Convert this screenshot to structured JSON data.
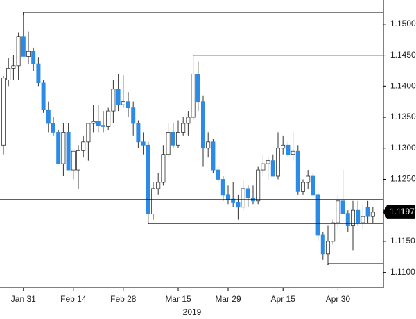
{
  "chart_data": {
    "type": "candlestick",
    "categories": [
      null,
      null,
      null,
      null,
      "Jan 31",
      null,
      null,
      null,
      null,
      null,
      null,
      null,
      null,
      null,
      "Feb 14",
      null,
      null,
      null,
      null,
      null,
      null,
      null,
      null,
      null,
      "Feb 28",
      null,
      null,
      null,
      null,
      null,
      null,
      null,
      null,
      null,
      null,
      "Mar 15",
      null,
      null,
      null,
      null,
      null,
      null,
      null,
      null,
      null,
      "Mar 29",
      null,
      null,
      null,
      null,
      null,
      null,
      null,
      null,
      null,
      null,
      "Apr 15",
      null,
      null,
      null,
      null,
      null,
      null,
      null,
      null,
      null,
      null,
      "Apr 30",
      null,
      null,
      null,
      null,
      null,
      null,
      null
    ],
    "open": [
      1.1305,
      1.141,
      1.1429,
      1.1433,
      1.148,
      1.1448,
      1.1456,
      1.1436,
      1.1406,
      1.1362,
      1.134,
      1.1325,
      1.1275,
      1.1325,
      1.1265,
      1.1265,
      1.1296,
      1.131,
      1.134,
      1.1343,
      1.1337,
      1.1335,
      1.136,
      1.1395,
      1.137,
      1.1375,
      1.1365,
      1.134,
      1.131,
      1.1305,
      1.1194,
      1.1235,
      1.1245,
      1.129,
      1.1325,
      1.1305,
      1.1325,
      1.134,
      1.135,
      1.142,
      1.1375,
      1.13,
      1.131,
      1.1265,
      1.125,
      1.1225,
      1.1218,
      1.1212,
      1.1205,
      1.1235,
      1.122,
      1.1215,
      1.1265,
      1.1275,
      1.128,
      1.1255,
      1.13,
      1.1305,
      1.129,
      1.1295,
      1.123,
      1.1245,
      1.1255,
      1.1225,
      1.116,
      1.113,
      1.115,
      1.118,
      1.1215,
      1.1195,
      1.1175,
      1.12,
      1.118,
      1.1205,
      1.119
    ],
    "high": [
      1.1417,
      1.1445,
      1.145,
      1.1487,
      1.1514,
      1.1488,
      1.1462,
      1.1447,
      1.141,
      1.1375,
      1.135,
      1.133,
      1.134,
      1.134,
      1.1295,
      1.1305,
      1.132,
      1.134,
      1.137,
      1.137,
      1.136,
      1.1365,
      1.141,
      1.142,
      1.1418,
      1.139,
      1.1375,
      1.1345,
      1.1325,
      1.131,
      1.1245,
      1.126,
      1.1305,
      1.134,
      1.134,
      1.1345,
      1.135,
      1.136,
      1.145,
      1.144,
      1.1385,
      1.1325,
      1.1315,
      1.127,
      1.1255,
      1.124,
      1.1245,
      1.1225,
      1.125,
      1.124,
      1.124,
      1.127,
      1.129,
      1.1285,
      1.129,
      1.1325,
      1.132,
      1.131,
      1.1325,
      1.1305,
      1.125,
      1.1265,
      1.126,
      1.123,
      1.1165,
      1.1175,
      1.1185,
      1.1225,
      1.1265,
      1.12,
      1.1215,
      1.1215,
      1.121,
      1.1215,
      1.1205
    ],
    "low": [
      1.129,
      1.14,
      1.141,
      1.141,
      1.145,
      1.1435,
      1.1425,
      1.14,
      1.1357,
      1.1325,
      1.132,
      1.1275,
      1.1255,
      1.1265,
      1.125,
      1.1235,
      1.1285,
      1.128,
      1.1325,
      1.1325,
      1.1325,
      1.133,
      1.134,
      1.136,
      1.1365,
      1.135,
      1.132,
      1.13,
      1.129,
      1.1178,
      1.1185,
      1.1225,
      1.124,
      1.1285,
      1.13,
      1.13,
      1.132,
      1.132,
      1.1345,
      1.136,
      1.127,
      1.1285,
      1.126,
      1.1245,
      1.1215,
      1.121,
      1.1205,
      1.1185,
      1.12,
      1.1205,
      1.121,
      1.121,
      1.1255,
      1.125,
      1.1255,
      1.125,
      1.129,
      1.1285,
      1.128,
      1.1225,
      1.1225,
      1.1235,
      1.1225,
      1.115,
      1.112,
      1.1112,
      1.1145,
      1.117,
      1.1195,
      1.1165,
      1.1135,
      1.1175,
      1.117,
      1.118,
      1.118
    ],
    "close": [
      1.1413,
      1.1429,
      1.1433,
      1.148,
      1.1448,
      1.1456,
      1.1436,
      1.1406,
      1.1362,
      1.134,
      1.1325,
      1.1275,
      1.1325,
      1.1265,
      1.1295,
      1.1296,
      1.131,
      1.134,
      1.1343,
      1.1337,
      1.1335,
      1.136,
      1.1395,
      1.137,
      1.1375,
      1.1365,
      1.134,
      1.131,
      1.1305,
      1.1194,
      1.1235,
      1.1245,
      1.129,
      1.1325,
      1.1305,
      1.1325,
      1.134,
      1.135,
      1.142,
      1.1375,
      1.13,
      1.131,
      1.1265,
      1.125,
      1.1225,
      1.1218,
      1.1212,
      1.1205,
      1.1235,
      1.122,
      1.1215,
      1.1265,
      1.1275,
      1.128,
      1.1255,
      1.13,
      1.1305,
      1.129,
      1.1295,
      1.123,
      1.1245,
      1.1255,
      1.1225,
      1.116,
      1.113,
      1.115,
      1.118,
      1.1215,
      1.1195,
      1.1175,
      1.12,
      1.118,
      1.119,
      1.119,
      1.1197
    ],
    "up_color": "#ffffff",
    "down_color": "#2b8be6",
    "levels": [
      {
        "value": 1.1519,
        "from": 4
      },
      {
        "value": 1.145,
        "from": 38
      },
      {
        "value": 1.1217,
        "from": 0
      },
      {
        "value": 1.1179,
        "from": 29
      },
      {
        "value": 1.1114,
        "from": 65
      }
    ],
    "last_price": 1.1197,
    "x_label": "2019",
    "ylim": [
      1.1075,
      1.1539
    ],
    "yticks": [
      {
        "value": 1.11,
        "label": "1.1100"
      },
      {
        "value": 1.115,
        "label": "1.1150"
      },
      {
        "value": 1.12,
        "label": "1.1200"
      },
      {
        "value": 1.125,
        "label": "1.1250"
      },
      {
        "value": 1.13,
        "label": "1.1300"
      },
      {
        "value": 1.135,
        "label": "1.1350"
      },
      {
        "value": 1.14,
        "label": "1.1400"
      },
      {
        "value": 1.145,
        "label": "1.1450"
      },
      {
        "value": 1.15,
        "label": "1.1500"
      }
    ]
  }
}
